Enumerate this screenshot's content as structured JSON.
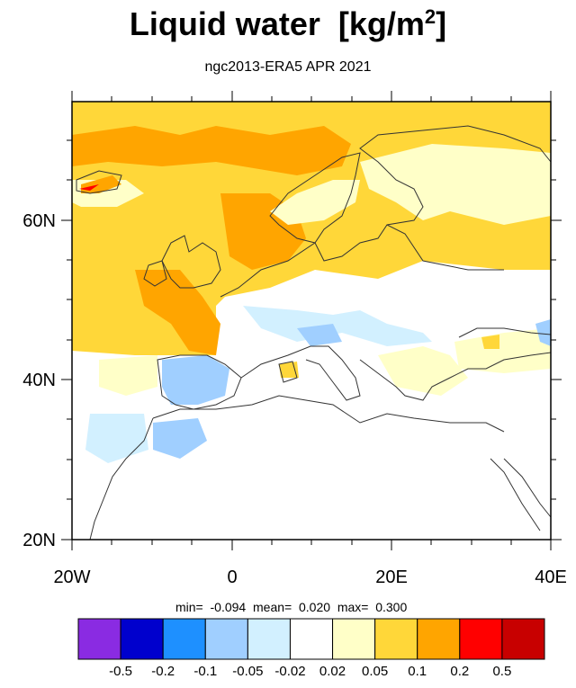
{
  "title": "Liquid water",
  "title_unit_base": "[kg/m",
  "title_unit_sup": "2",
  "title_unit_end": "]",
  "subtitle": "ngc2013-ERA5 APR 2021",
  "stats": {
    "min_label": "min=",
    "min": "-0.094",
    "mean_label": "mean=",
    "mean": "0.020",
    "max_label": "max=",
    "max": "0.300"
  },
  "axes": {
    "x_ticks": [
      "20W",
      "0",
      "20E",
      "40E"
    ],
    "y_ticks": [
      "20N",
      "40N",
      "60N"
    ]
  },
  "colorbar": {
    "colors": [
      "#8a2be2",
      "#0000cd",
      "#1e90ff",
      "#a0cfff",
      "#d2f0ff",
      "#ffffff",
      "#ffffc8",
      "#ffd739",
      "#ffa500",
      "#ff0000",
      "#c80000"
    ],
    "labels": [
      "-0.5",
      "-0.2",
      "-0.1",
      "-0.05",
      "-0.02",
      "0.02",
      "0.05",
      "0.1",
      "0.2",
      "0.5"
    ]
  },
  "chart_data": {
    "type": "heatmap",
    "title": "Liquid water  [kg/m2]",
    "subtitle": "ngc2013-ERA5 APR 2021",
    "lon_range": [
      -20,
      40
    ],
    "lat_range": [
      20,
      75
    ],
    "x_ticks": [
      "20W",
      "0",
      "20E",
      "40E"
    ],
    "y_ticks": [
      "20N",
      "40N",
      "60N"
    ],
    "levels": [
      -0.5,
      -0.2,
      -0.1,
      -0.05,
      -0.02,
      0.02,
      0.05,
      0.1,
      0.2,
      0.5
    ],
    "min": -0.094,
    "mean": 0.02,
    "max": 0.3
  }
}
